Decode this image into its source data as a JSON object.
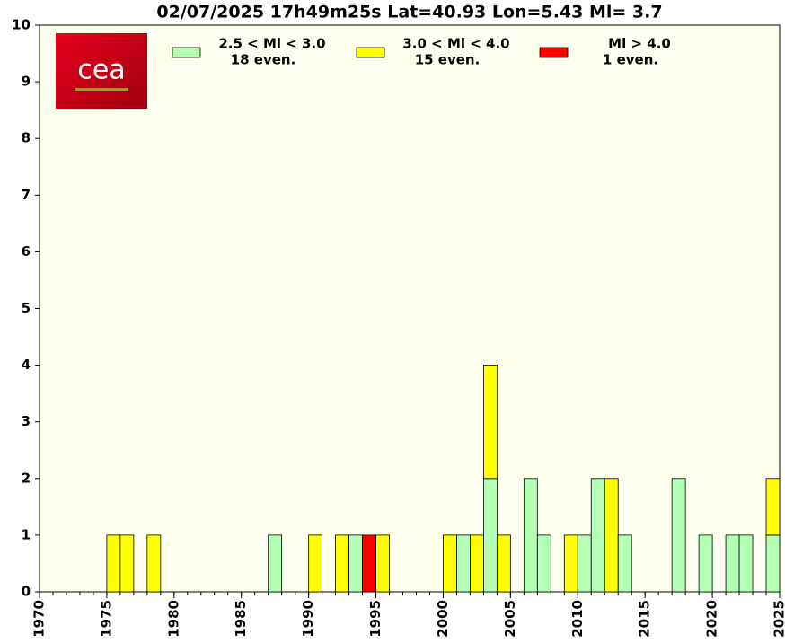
{
  "chart_data": {
    "type": "bar",
    "stacked": true,
    "title": "02/07/2025 17h49m25s Lat=40.93 Lon=5.43 Ml= 3.7",
    "logo": "cea",
    "x": [
      1975,
      1976,
      1978,
      1987,
      1990,
      1992,
      1993,
      1994,
      1995,
      2000,
      2001,
      2002,
      2003,
      2004,
      2006,
      2007,
      2009,
      2010,
      2011,
      2012,
      2013,
      2017,
      2019,
      2021,
      2022,
      2024
    ],
    "series": [
      {
        "name": "2.5 < Ml <  3.0",
        "note": "18 even.",
        "color": "#b3ffb3",
        "values": [
          null,
          null,
          null,
          1,
          null,
          null,
          1,
          null,
          null,
          null,
          1,
          null,
          2,
          null,
          2,
          1,
          null,
          1,
          2,
          null,
          1,
          2,
          1,
          1,
          1,
          1
        ]
      },
      {
        "name": "3.0 < Ml <  4.0",
        "note": "15 even.",
        "color": "#ffff00",
        "values": [
          1,
          1,
          1,
          null,
          1,
          1,
          null,
          null,
          1,
          1,
          null,
          1,
          2,
          1,
          null,
          null,
          1,
          null,
          null,
          2,
          null,
          null,
          null,
          null,
          null,
          1
        ]
      },
      {
        "name": "Ml >  4.0",
        "note": "1 even.",
        "color": "#ff0000",
        "values": [
          null,
          null,
          null,
          null,
          null,
          null,
          null,
          1,
          null,
          null,
          null,
          null,
          null,
          null,
          null,
          null,
          null,
          null,
          null,
          null,
          null,
          null,
          null,
          null,
          null,
          null
        ]
      }
    ],
    "xlim": [
      1970,
      2025
    ],
    "xticks": [
      1970,
      1975,
      1980,
      1985,
      1990,
      1995,
      2000,
      2005,
      2010,
      2015,
      2020,
      2025
    ],
    "ylim": [
      0,
      10
    ],
    "yticks": [
      0,
      1,
      2,
      3,
      4,
      5,
      6,
      7,
      8,
      9,
      10
    ],
    "background": "#ffffee"
  }
}
